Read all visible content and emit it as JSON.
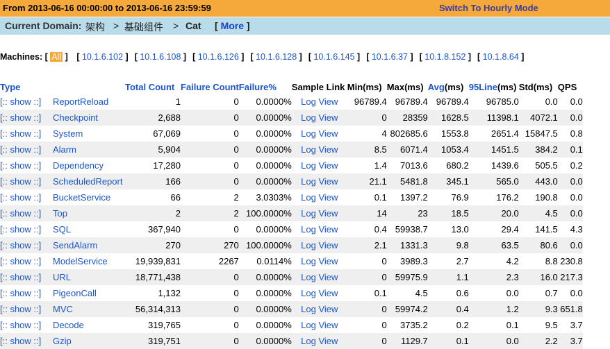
{
  "header": {
    "range": "From 2013-06-16 00:00:00 to 2013-06-16 23:59:59",
    "switch_label": "Switch To Hourly Mode"
  },
  "domain": {
    "label": "Current Domain:",
    "crumbs": [
      ">",
      "架构",
      ">",
      "基础组件",
      ">",
      "Cat"
    ],
    "crumb1": "架构",
    "crumb2": "基础组件",
    "crumb3": "Cat",
    "more_label": "More"
  },
  "machines": {
    "label": "Machines:",
    "all": "All",
    "items": [
      "10.1.6.102",
      "10.1.6.108",
      "10.1.6.126",
      "10.1.6.128",
      "10.1.6.145",
      "10.1.6.37",
      "10.1.8.152",
      "10.1.8.64"
    ]
  },
  "table": {
    "headers": {
      "type": "Type",
      "total": "Total Count",
      "failure": "Failure Count",
      "failure_pct": "Failure%",
      "sample": "Sample Link",
      "min": "Min(ms)",
      "max": "Max(ms)",
      "avg": "Avg",
      "avg_unit": "(ms)",
      "line95": "95Line",
      "line95_unit": "(ms)",
      "std": "Std(ms)",
      "qps": "QPS"
    },
    "show_label": "[:: show ::]",
    "log_label": "Log View",
    "rows": [
      {
        "type": "ReportReload",
        "total": "1",
        "fail": "0",
        "pct": "0.0000%",
        "min": "96789.4",
        "max": "96789.4",
        "avg": "96789.4",
        "p95": "96785.0",
        "std": "0.0",
        "qps": "0.0"
      },
      {
        "type": "Checkpoint",
        "total": "2,688",
        "fail": "0",
        "pct": "0.0000%",
        "min": "0",
        "max": "28359",
        "avg": "1628.5",
        "p95": "11398.1",
        "std": "4072.1",
        "qps": "0.0"
      },
      {
        "type": "System",
        "total": "67,069",
        "fail": "0",
        "pct": "0.0000%",
        "min": "4",
        "max": "802685.6",
        "avg": "1553.8",
        "p95": "2651.4",
        "std": "15847.5",
        "qps": "0.8"
      },
      {
        "type": "Alarm",
        "total": "5,904",
        "fail": "0",
        "pct": "0.0000%",
        "min": "8.5",
        "max": "6071.4",
        "avg": "1053.4",
        "p95": "1451.5",
        "std": "384.2",
        "qps": "0.1"
      },
      {
        "type": "Dependency",
        "total": "17,280",
        "fail": "0",
        "pct": "0.0000%",
        "min": "1.4",
        "max": "7013.6",
        "avg": "680.2",
        "p95": "1439.6",
        "std": "505.5",
        "qps": "0.2"
      },
      {
        "type": "ScheduledReport",
        "total": "166",
        "fail": "0",
        "pct": "0.0000%",
        "min": "21.1",
        "max": "5481.8",
        "avg": "345.1",
        "p95": "565.0",
        "std": "443.0",
        "qps": "0.0"
      },
      {
        "type": "BucketService",
        "total": "66",
        "fail": "2",
        "pct": "3.0303%",
        "min": "0.1",
        "max": "1397.2",
        "avg": "76.9",
        "p95": "176.2",
        "std": "190.8",
        "qps": "0.0"
      },
      {
        "type": "Top",
        "total": "2",
        "fail": "2",
        "pct": "100.0000%",
        "min": "14",
        "max": "23",
        "avg": "18.5",
        "p95": "20.0",
        "std": "4.5",
        "qps": "0.0"
      },
      {
        "type": "SQL",
        "total": "367,940",
        "fail": "0",
        "pct": "0.0000%",
        "min": "0.4",
        "max": "59938.7",
        "avg": "13.0",
        "p95": "29.4",
        "std": "141.5",
        "qps": "4.3"
      },
      {
        "type": "SendAlarm",
        "total": "270",
        "fail": "270",
        "pct": "100.0000%",
        "min": "2.1",
        "max": "1331.3",
        "avg": "9.8",
        "p95": "63.5",
        "std": "80.6",
        "qps": "0.0"
      },
      {
        "type": "ModelService",
        "total": "19,939,831",
        "fail": "2267",
        "pct": "0.0114%",
        "min": "0",
        "max": "3989.3",
        "avg": "2.7",
        "p95": "4.2",
        "std": "8.8",
        "qps": "230.8"
      },
      {
        "type": "URL",
        "total": "18,771,438",
        "fail": "0",
        "pct": "0.0000%",
        "min": "0",
        "max": "59975.9",
        "avg": "1.1",
        "p95": "2.3",
        "std": "16.0",
        "qps": "217.3"
      },
      {
        "type": "PigeonCall",
        "total": "1,132",
        "fail": "0",
        "pct": "0.0000%",
        "min": "0.1",
        "max": "4.5",
        "avg": "0.6",
        "p95": "0.0",
        "std": "0.7",
        "qps": "0.0"
      },
      {
        "type": "MVC",
        "total": "56,314,313",
        "fail": "0",
        "pct": "0.0000%",
        "min": "0",
        "max": "59974.2",
        "avg": "0.4",
        "p95": "1.2",
        "std": "9.3",
        "qps": "651.8"
      },
      {
        "type": "Decode",
        "total": "319,765",
        "fail": "0",
        "pct": "0.0000%",
        "min": "0",
        "max": "3735.2",
        "avg": "0.2",
        "p95": "0.1",
        "std": "9.5",
        "qps": "3.7"
      },
      {
        "type": "Gzip",
        "total": "319,751",
        "fail": "0",
        "pct": "0.0000%",
        "min": "0",
        "max": "1129.7",
        "avg": "0.1",
        "p95": "0.0",
        "std": "2.2",
        "qps": "3.7"
      }
    ]
  },
  "colors": {
    "topbar": "#f6a93b",
    "domainbar": "#b9dcea",
    "link": "#1a55cc",
    "switch": "#3b3aa0"
  }
}
